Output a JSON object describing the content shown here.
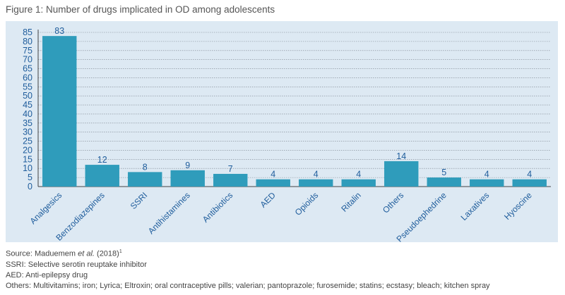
{
  "title": "Figure 1: Number of drugs implicated in OD among adolescents",
  "chart_data": {
    "type": "bar",
    "title": "Figure 1: Number of drugs implicated in OD among adolescents",
    "xlabel": "",
    "ylabel": "",
    "categories": [
      "Analgesics",
      "Benzodiazepines",
      "SSRI",
      "Antihistamines",
      "Antibiotics",
      "AED",
      "Opioids",
      "Ritalin",
      "Others",
      "Pseudoephedrine",
      "Laxatives",
      "Hyoscine"
    ],
    "values": [
      83,
      12,
      8,
      9,
      7,
      4,
      4,
      4,
      14,
      5,
      4,
      4
    ],
    "ylim": [
      0,
      85
    ],
    "yticks": [
      0,
      5,
      10,
      15,
      20,
      25,
      30,
      35,
      40,
      45,
      50,
      55,
      60,
      65,
      70,
      75,
      80,
      85
    ],
    "grid": true,
    "bar_color": "#2f9cbb",
    "label_color": "#1f5d9c"
  },
  "footnotes": {
    "source_prefix": "Source: Maduemem ",
    "source_etal": "et al.",
    "source_year": " (2018)",
    "source_ref": "1",
    "ssri": "SSRI: Selective serotin reuptake inhibitor",
    "aed": "AED: Anti-epilepsy drug",
    "others": "Others: Multivitamins; iron; Lyrica; Eltroxin; oral contraceptive pills; valerian; pantoprazole; furosemide; statins; ecstasy; bleach; kitchen spray"
  }
}
